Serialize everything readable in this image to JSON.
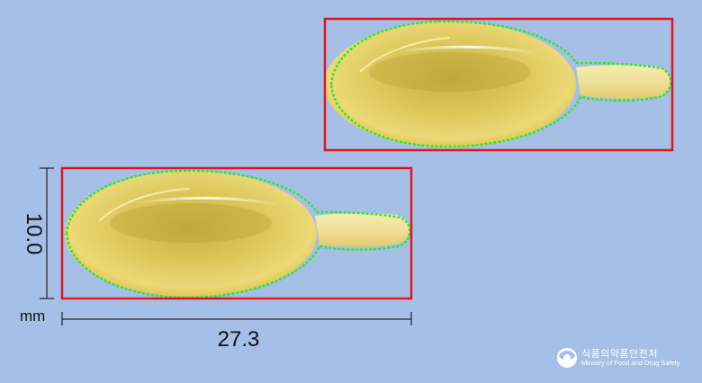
{
  "measurement": {
    "height_value": "10.0",
    "width_value": "27.3",
    "unit": "mm"
  },
  "logo": {
    "korean_text": "식품의약품안전처",
    "english_text": "Ministry of Food and Drug Safety",
    "icon": "mfds-emblem-icon"
  },
  "colors": {
    "background": "#a6bfe7",
    "bounding_box": "#e0161e",
    "contour": "#2ee82a",
    "capsule_fill": "#e7d46a",
    "dimension_line": "#222222"
  }
}
